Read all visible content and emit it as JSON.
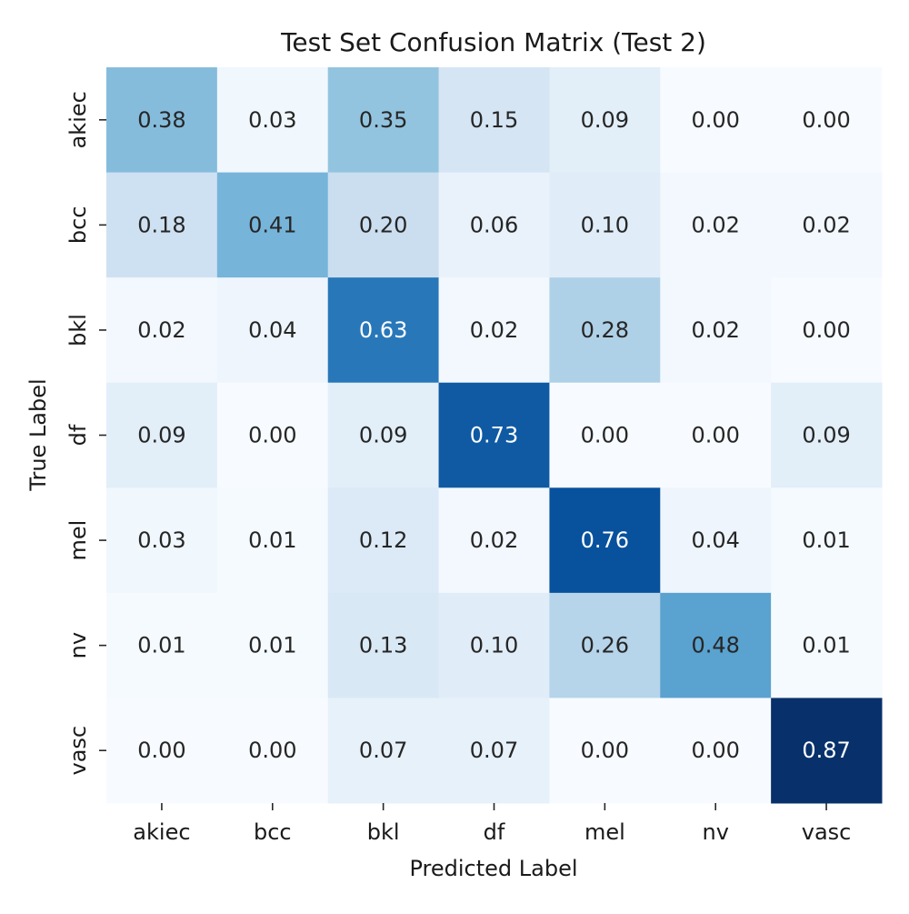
{
  "chart_data": {
    "type": "heatmap",
    "title": "Test Set Confusion Matrix (Test 2)",
    "xlabel": "Predicted Label",
    "ylabel": "True Label",
    "x_categories": [
      "akiec",
      "bcc",
      "bkl",
      "df",
      "mel",
      "nv",
      "vasc"
    ],
    "y_categories": [
      "akiec",
      "bcc",
      "bkl",
      "df",
      "mel",
      "nv",
      "vasc"
    ],
    "values": [
      [
        0.38,
        0.03,
        0.35,
        0.15,
        0.09,
        0.0,
        0.0
      ],
      [
        0.18,
        0.41,
        0.2,
        0.06,
        0.1,
        0.02,
        0.02
      ],
      [
        0.02,
        0.04,
        0.63,
        0.02,
        0.28,
        0.02,
        0.0
      ],
      [
        0.09,
        0.0,
        0.09,
        0.73,
        0.0,
        0.0,
        0.09
      ],
      [
        0.03,
        0.01,
        0.12,
        0.02,
        0.76,
        0.04,
        0.01
      ],
      [
        0.01,
        0.01,
        0.13,
        0.1,
        0.26,
        0.48,
        0.01
      ],
      [
        0.0,
        0.0,
        0.07,
        0.07,
        0.0,
        0.0,
        0.87
      ]
    ],
    "value_format": "2 decimals",
    "colormap": "Blues",
    "vmin": 0.0,
    "vmax": 0.87,
    "colorbar": false,
    "grid": false,
    "colors": {
      "low": "#f7fbff",
      "high": "#08306b",
      "text_dark": "#262626",
      "text_light": "#ffffff"
    }
  }
}
